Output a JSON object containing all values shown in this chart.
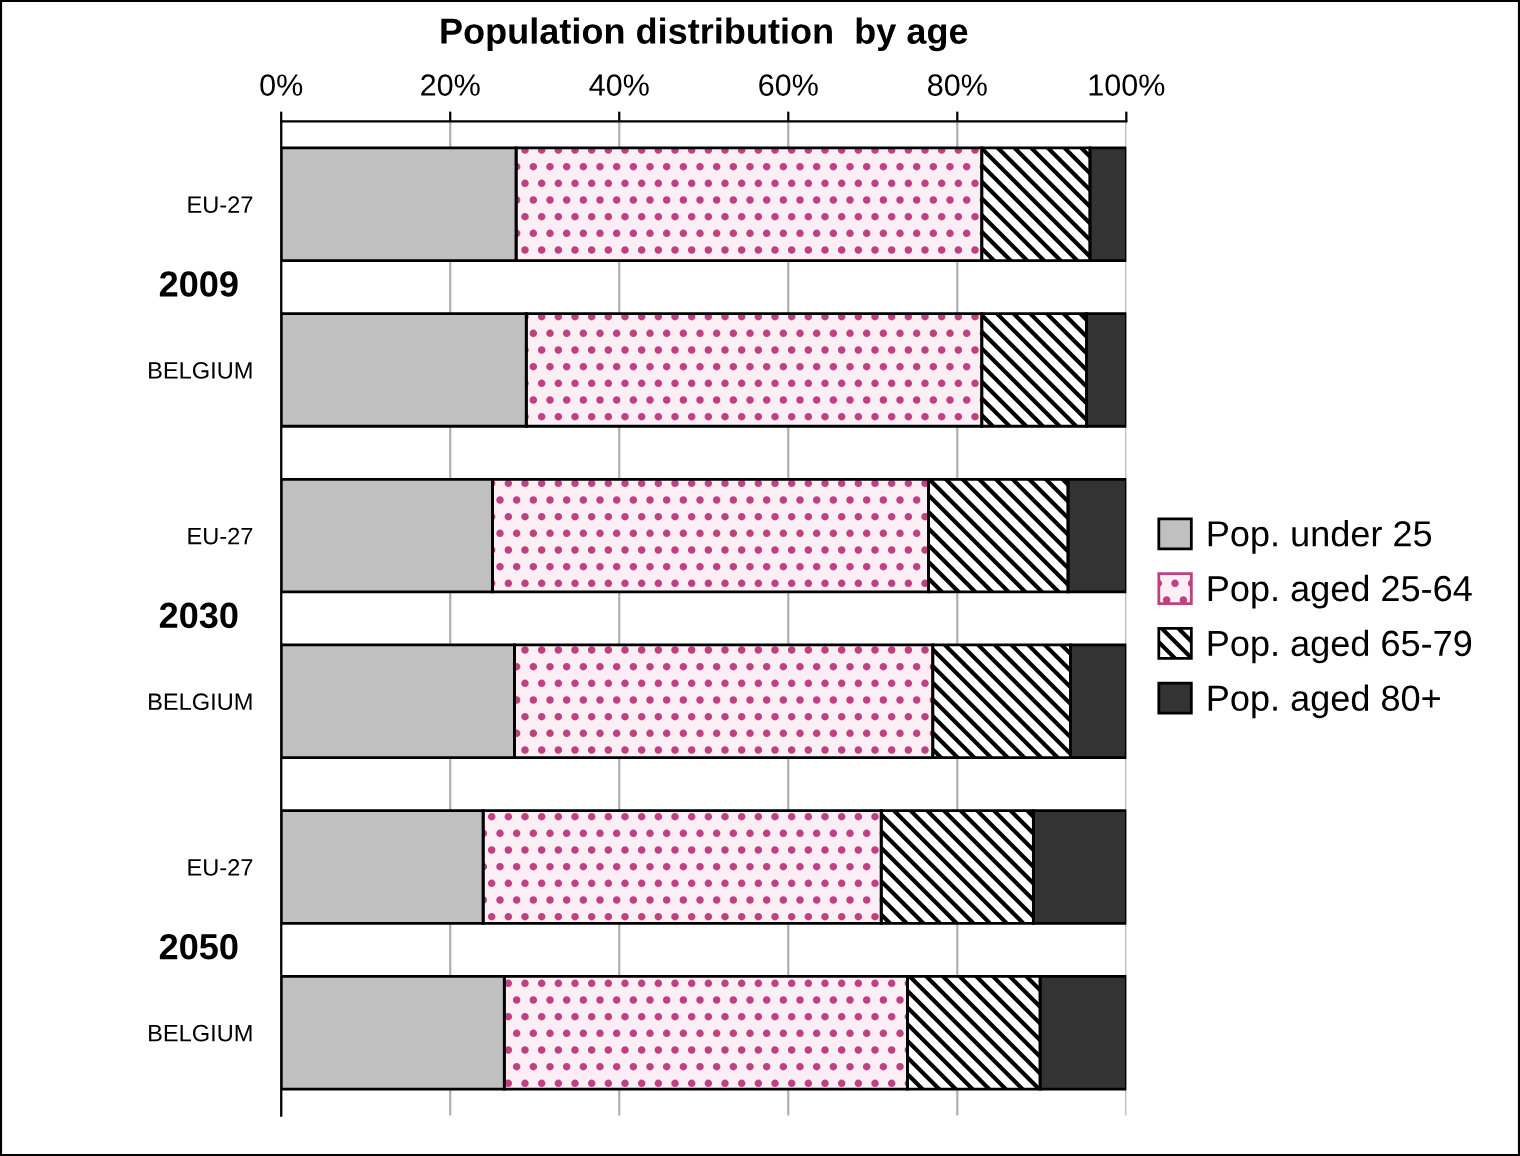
{
  "chart_data": {
    "type": "bar",
    "orientation": "horizontal",
    "stacked": true,
    "title": "Population distribution  by age",
    "categories": [
      "EU-27",
      "BELGIUM",
      "EU-27",
      "BELGIUM",
      "EU-27",
      "BELGIUM"
    ],
    "annotations": [
      "2009",
      "2030",
      "2050"
    ],
    "series": [
      {
        "name": "Pop. under 25",
        "color": "#c0c0c0",
        "values": [
          27.8,
          29.0,
          25.0,
          27.6,
          23.9,
          26.4
        ]
      },
      {
        "name": "Pop. aged 25-64",
        "color": "#fbeef4",
        "values": [
          55.1,
          53.9,
          51.6,
          49.5,
          47.1,
          47.7
        ]
      },
      {
        "name": "Pop. aged 65-79",
        "color": "#ffffff",
        "values": [
          12.8,
          12.4,
          16.5,
          16.3,
          18.0,
          15.7
        ]
      },
      {
        "name": "Pop. aged 80+",
        "color": "#333333",
        "values": [
          4.3,
          4.7,
          6.9,
          6.6,
          11.0,
          10.2
        ]
      }
    ],
    "xlim": [
      0,
      100
    ],
    "xticks": [
      {
        "value": 0,
        "label": "0%"
      },
      {
        "value": 20,
        "label": "20%"
      },
      {
        "value": 40,
        "label": "40%"
      },
      {
        "value": 60,
        "label": "60%"
      },
      {
        "value": 80,
        "label": "80%"
      },
      {
        "value": 100,
        "label": "100%"
      }
    ],
    "grid": "x",
    "legend": "right"
  }
}
